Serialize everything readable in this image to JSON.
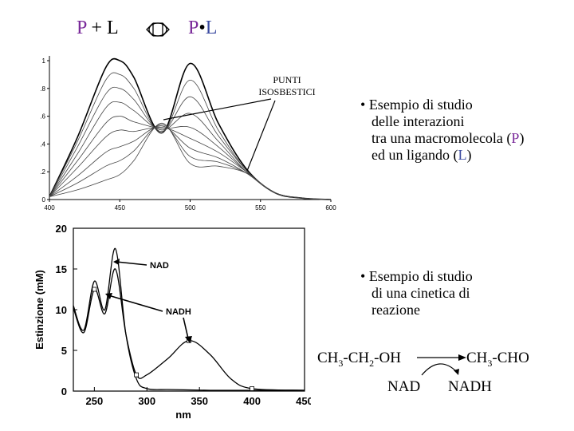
{
  "equation": {
    "left_p": "P",
    "plus": " + ",
    "left_l": "L",
    "right_p": "P",
    "dot": "•",
    "right_l": "L"
  },
  "top_chart": {
    "annotation": "PUNTI ISOSBESTICI",
    "annotation_line1": "PUNTI",
    "annotation_line2": "ISOSBESTICI",
    "y_ticks": [
      "0",
      ".2",
      ".4",
      ".6",
      ".8",
      "1"
    ],
    "x_ticks": [
      "400",
      "450",
      "500",
      "550",
      "600"
    ]
  },
  "note1": {
    "bullet": "•",
    "line1": "Esempio di studio",
    "line2": "delle interazioni",
    "line3a": "tra una macromolecola (",
    "line3p": "P",
    "line3b": ")",
    "line4a": "ed un ligando (",
    "line4l": "L",
    "line4b": ")"
  },
  "bottom_chart": {
    "ylabel": "Estinzione (mM)",
    "xlabel": "nm",
    "y_ticks": [
      "0",
      "5",
      "10",
      "15",
      "20"
    ],
    "x_ticks": [
      "250",
      "300",
      "350",
      "400",
      "450"
    ],
    "label_nad": "NAD",
    "label_nadh": "NADH"
  },
  "note2": {
    "bullet": "•",
    "line1": "Esempio di studio",
    "line2": "di una cinetica di",
    "line3": "reazione"
  },
  "reaction": {
    "ethanol_a": "CH",
    "ethanol_s1": "3",
    "ethanol_b": "-CH",
    "ethanol_s2": "2",
    "ethanol_c": "-OH",
    "acetal_a": "CH",
    "acetal_s1": "3",
    "acetal_b": "-CHO",
    "nad": "NAD",
    "nadh": "NADH"
  },
  "chart_data": [
    {
      "type": "line",
      "x_range": [
        400,
        600
      ],
      "y_range": [
        0,
        1
      ],
      "note": "family of absorbance spectra with isosbestic points",
      "x": [
        400,
        420,
        440,
        450,
        460,
        480,
        500,
        520,
        540,
        560,
        580,
        600
      ],
      "series": [
        {
          "values": [
            0.02,
            0.45,
            0.95,
            1.0,
            0.88,
            0.48,
            0.98,
            0.55,
            0.22,
            0.05,
            0.01,
            0.0
          ]
        },
        {
          "values": [
            0.02,
            0.42,
            0.86,
            0.9,
            0.8,
            0.48,
            0.86,
            0.5,
            0.21,
            0.05,
            0.01,
            0.0
          ]
        },
        {
          "values": [
            0.02,
            0.38,
            0.76,
            0.8,
            0.72,
            0.49,
            0.74,
            0.46,
            0.21,
            0.05,
            0.01,
            0.0
          ]
        },
        {
          "values": [
            0.02,
            0.33,
            0.66,
            0.7,
            0.64,
            0.5,
            0.62,
            0.42,
            0.2,
            0.05,
            0.01,
            0.0
          ]
        },
        {
          "values": [
            0.02,
            0.28,
            0.55,
            0.6,
            0.56,
            0.51,
            0.52,
            0.38,
            0.2,
            0.05,
            0.01,
            0.0
          ]
        },
        {
          "values": [
            0.02,
            0.23,
            0.45,
            0.5,
            0.49,
            0.52,
            0.44,
            0.34,
            0.2,
            0.05,
            0.01,
            0.0
          ]
        },
        {
          "values": [
            0.02,
            0.17,
            0.34,
            0.38,
            0.42,
            0.53,
            0.37,
            0.3,
            0.19,
            0.05,
            0.01,
            0.0
          ]
        },
        {
          "values": [
            0.02,
            0.12,
            0.24,
            0.28,
            0.35,
            0.54,
            0.31,
            0.27,
            0.19,
            0.05,
            0.01,
            0.0
          ]
        },
        {
          "values": [
            0.02,
            0.07,
            0.14,
            0.18,
            0.28,
            0.55,
            0.26,
            0.24,
            0.19,
            0.05,
            0.01,
            0.0
          ]
        }
      ]
    },
    {
      "type": "line",
      "xlabel": "nm",
      "ylabel": "Estinzione (mM)",
      "x_range": [
        230,
        450
      ],
      "y_range": [
        0,
        20
      ],
      "x": [
        230,
        240,
        250,
        260,
        270,
        280,
        290,
        300,
        320,
        340,
        360,
        380,
        400,
        450
      ],
      "series": [
        {
          "name": "NAD",
          "values": [
            10.5,
            7.5,
            13.5,
            10.0,
            17.5,
            7.0,
            1.5,
            0.3,
            0.2,
            0.15,
            0.1,
            0.1,
            0.1,
            0.1
          ]
        },
        {
          "name": "NADH",
          "values": [
            10.2,
            7.2,
            12.5,
            9.5,
            15.0,
            7.0,
            2.0,
            2.0,
            4.0,
            6.2,
            4.5,
            1.5,
            0.3,
            0.1
          ]
        }
      ]
    }
  ]
}
